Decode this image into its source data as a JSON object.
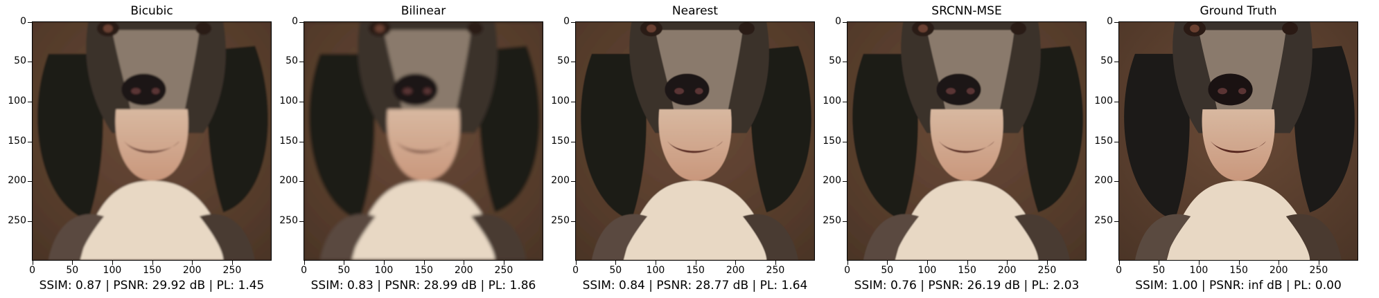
{
  "panels": [
    {
      "title": "Bicubic",
      "metrics": "SSIM: 0.87 | PSNR: 29.92 dB | PL: 1.45",
      "blur": 1.2
    },
    {
      "title": "Bilinear",
      "metrics": "SSIM: 0.83 | PSNR: 28.99 dB | PL: 1.86",
      "blur": 2.0
    },
    {
      "title": "Nearest",
      "metrics": "SSIM: 0.84 | PSNR: 28.77 dB | PL: 1.64",
      "blur": 0.4
    },
    {
      "title": "SRCNN-MSE",
      "metrics": "SSIM: 0.76 | PSNR: 26.19 dB | PL: 2.03",
      "blur": 0.6
    },
    {
      "title": "Ground Truth",
      "metrics": "SSIM: 1.00 | PSNR: inf dB | PL: 0.00",
      "blur": 0
    }
  ],
  "axes": {
    "y_ticks": [
      "0",
      "50",
      "100",
      "150",
      "200",
      "250"
    ],
    "x_ticks": [
      "0",
      "50",
      "100",
      "150",
      "200",
      "250"
    ],
    "y_values": [
      0,
      50,
      100,
      150,
      200,
      250
    ],
    "x_values": [
      0,
      50,
      100,
      150,
      200,
      250
    ],
    "image_size": 300
  },
  "image": {
    "subject": "dog-portrait",
    "colors": {
      "bg": "#4a3426",
      "fur_dark": "#1c1a18",
      "fur_light": "#e8d8c4",
      "muzzle": "#c9977c",
      "nose": "#1a1212"
    }
  }
}
